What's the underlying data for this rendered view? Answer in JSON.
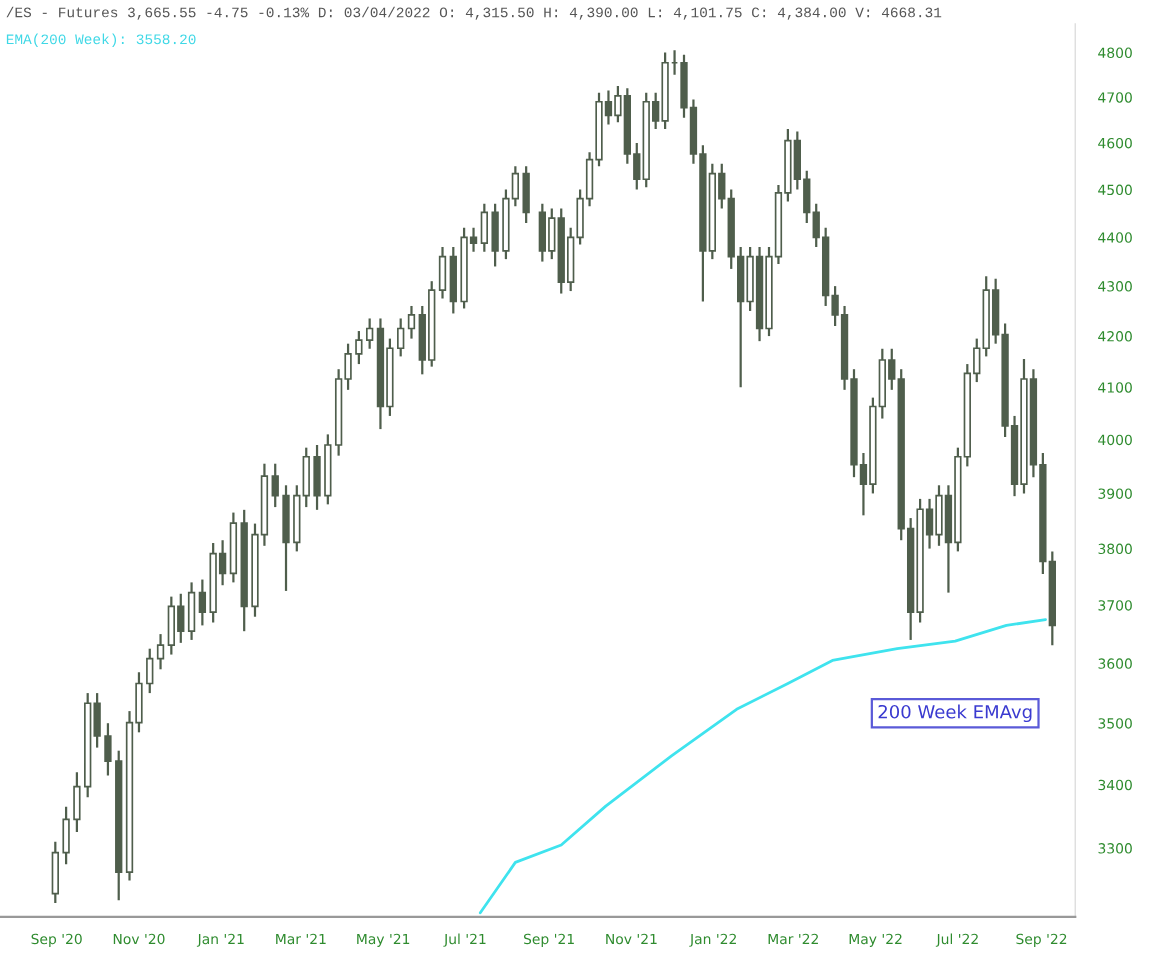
{
  "chart_data": {
    "type": "candlestick",
    "title": "/ES - Futures 3,665.55 -4.75 -0.13% D: 03/04/2022 O: 4,315.50 H: 4,390.00 L: 4,101.75 C: 4,384.00 V: 4668.31",
    "subtitle": "EMA(200 Week): 3558.20",
    "color": "#4f5e4c",
    "x": [
      "2020-08-31",
      "2020-09-08",
      "2020-09-16",
      "2020-09-24",
      "2020-10-01",
      "2020-10-09",
      "2020-10-17",
      "2020-10-25",
      "2020-11-01",
      "2020-11-09",
      "2020-11-17",
      "2020-11-25",
      "2020-12-02",
      "2020-12-10",
      "2020-12-18",
      "2020-12-26",
      "2021-01-02",
      "2021-01-10",
      "2021-01-18",
      "2021-01-26",
      "2021-02-02",
      "2021-02-10",
      "2021-02-18",
      "2021-02-26",
      "2021-03-05",
      "2021-03-13",
      "2021-03-21",
      "2021-03-29",
      "2021-04-05",
      "2021-04-13",
      "2021-04-21",
      "2021-04-29",
      "2021-05-06",
      "2021-05-14",
      "2021-05-22",
      "2021-05-30",
      "2021-06-06",
      "2021-06-14",
      "2021-06-22",
      "2021-06-30",
      "2021-07-07",
      "2021-07-15",
      "2021-07-23",
      "2021-07-31",
      "2021-08-07",
      "2021-08-15",
      "2021-08-27",
      "2021-09-03",
      "2021-09-10",
      "2021-09-17",
      "2021-09-24",
      "2021-10-01",
      "2021-10-08",
      "2021-10-15",
      "2021-10-22",
      "2021-10-29",
      "2021-11-05",
      "2021-11-12",
      "2021-11-19",
      "2021-11-26",
      "2021-12-03",
      "2021-12-10",
      "2021-12-17",
      "2021-12-24",
      "2021-12-31",
      "2022-01-07",
      "2022-01-14",
      "2022-01-21",
      "2022-01-28",
      "2022-02-04",
      "2022-02-11",
      "2022-02-18",
      "2022-02-25",
      "2022-03-04",
      "2022-03-11",
      "2022-03-18",
      "2022-03-25",
      "2022-04-01",
      "2022-04-08",
      "2022-04-15",
      "2022-04-22",
      "2022-04-29",
      "2022-05-06",
      "2022-05-13",
      "2022-05-20",
      "2022-05-27",
      "2022-06-03",
      "2022-06-10",
      "2022-06-17",
      "2022-06-24",
      "2022-07-01",
      "2022-07-08",
      "2022-07-15",
      "2022-07-22",
      "2022-07-29",
      "2022-08-05",
      "2022-08-12",
      "2022-08-19",
      "2022-08-26",
      "2022-09-02",
      "2022-09-09"
    ],
    "ohlc": [
      [
        3230,
        3310,
        3216,
        3293
      ],
      [
        3293,
        3365,
        3275,
        3345
      ],
      [
        3345,
        3420,
        3325,
        3397
      ],
      [
        3397,
        3550,
        3380,
        3533
      ],
      [
        3533,
        3550,
        3460,
        3479
      ],
      [
        3479,
        3500,
        3415,
        3438
      ],
      [
        3438,
        3455,
        3220,
        3263
      ],
      [
        3263,
        3520,
        3250,
        3501
      ],
      [
        3501,
        3585,
        3485,
        3566
      ],
      [
        3566,
        3625,
        3550,
        3608
      ],
      [
        3608,
        3650,
        3590,
        3631
      ],
      [
        3631,
        3715,
        3615,
        3698
      ],
      [
        3698,
        3720,
        3635,
        3655
      ],
      [
        3655,
        3740,
        3640,
        3722
      ],
      [
        3722,
        3745,
        3665,
        3688
      ],
      [
        3688,
        3810,
        3670,
        3791
      ],
      [
        3791,
        3815,
        3735,
        3756
      ],
      [
        3756,
        3865,
        3740,
        3846
      ],
      [
        3846,
        3870,
        3655,
        3698
      ],
      [
        3698,
        3845,
        3680,
        3825
      ],
      [
        3825,
        3955,
        3805,
        3932
      ],
      [
        3932,
        3955,
        3875,
        3896
      ],
      [
        3896,
        3915,
        3725,
        3811
      ],
      [
        3811,
        3915,
        3795,
        3896
      ],
      [
        3896,
        3985,
        3875,
        3968
      ],
      [
        3968,
        3990,
        3870,
        3896
      ],
      [
        3896,
        4010,
        3880,
        3990
      ],
      [
        3990,
        4135,
        3970,
        4116
      ],
      [
        4116,
        4185,
        4095,
        4165
      ],
      [
        4165,
        4210,
        4145,
        4192
      ],
      [
        4192,
        4235,
        4175,
        4215
      ],
      [
        4215,
        4235,
        4020,
        4063
      ],
      [
        4063,
        4195,
        4045,
        4176
      ],
      [
        4176,
        4235,
        4160,
        4215
      ],
      [
        4215,
        4260,
        4195,
        4242
      ],
      [
        4242,
        4260,
        4125,
        4153
      ],
      [
        4153,
        4310,
        4140,
        4292
      ],
      [
        4292,
        4380,
        4275,
        4360
      ],
      [
        4360,
        4380,
        4245,
        4269
      ],
      [
        4269,
        4420,
        4255,
        4400
      ],
      [
        4400,
        4420,
        4370,
        4388
      ],
      [
        4388,
        4470,
        4370,
        4452
      ],
      [
        4452,
        4470,
        4340,
        4372
      ],
      [
        4372,
        4500,
        4355,
        4481
      ],
      [
        4481,
        4550,
        4465,
        4534
      ],
      [
        4534,
        4550,
        4430,
        4452
      ],
      [
        4452,
        4470,
        4350,
        4372
      ],
      [
        4372,
        4460,
        4355,
        4440
      ],
      [
        4440,
        4460,
        4285,
        4308
      ],
      [
        4308,
        4420,
        4290,
        4400
      ],
      [
        4400,
        4500,
        4385,
        4481
      ],
      [
        4481,
        4580,
        4465,
        4564
      ],
      [
        4564,
        4710,
        4550,
        4690
      ],
      [
        4690,
        4715,
        4640,
        4660
      ],
      [
        4660,
        4725,
        4645,
        4703
      ],
      [
        4703,
        4720,
        4555,
        4576
      ],
      [
        4576,
        4600,
        4500,
        4522
      ],
      [
        4522,
        4710,
        4505,
        4690
      ],
      [
        4690,
        4710,
        4630,
        4648
      ],
      [
        4648,
        4800,
        4630,
        4777
      ],
      [
        4777,
        4805,
        4750,
        4777
      ],
      [
        4777,
        4795,
        4655,
        4677
      ],
      [
        4677,
        4695,
        4555,
        4576
      ],
      [
        4576,
        4595,
        4269,
        4372
      ],
      [
        4372,
        4555,
        4355,
        4534
      ],
      [
        4534,
        4555,
        4460,
        4481
      ],
      [
        4481,
        4500,
        4335,
        4360
      ],
      [
        4360,
        4380,
        4100,
        4269
      ],
      [
        4269,
        4380,
        4250,
        4360
      ],
      [
        4360,
        4380,
        4190,
        4215
      ],
      [
        4215,
        4380,
        4200,
        4360
      ],
      [
        4360,
        4510,
        4345,
        4493
      ],
      [
        4493,
        4630,
        4475,
        4605
      ],
      [
        4605,
        4625,
        4500,
        4522
      ],
      [
        4522,
        4540,
        4430,
        4452
      ],
      [
        4452,
        4470,
        4380,
        4400
      ],
      [
        4400,
        4420,
        4260,
        4281
      ],
      [
        4281,
        4300,
        4220,
        4242
      ],
      [
        4242,
        4260,
        4095,
        4116
      ],
      [
        4116,
        4135,
        3930,
        3953
      ],
      [
        3953,
        3975,
        3860,
        3917
      ],
      [
        3917,
        4080,
        3900,
        4063
      ],
      [
        4063,
        4175,
        4040,
        4153
      ],
      [
        4153,
        4175,
        4095,
        4116
      ],
      [
        4116,
        4135,
        3815,
        3836
      ],
      [
        3836,
        3855,
        3640,
        3688
      ],
      [
        3688,
        3890,
        3670,
        3871
      ],
      [
        3871,
        3890,
        3800,
        3825
      ],
      [
        3825,
        3915,
        3805,
        3896
      ],
      [
        3896,
        3915,
        3722,
        3811
      ],
      [
        3811,
        3985,
        3795,
        3968
      ],
      [
        3968,
        4145,
        3950,
        4127
      ],
      [
        4127,
        4195,
        4110,
        4176
      ],
      [
        4176,
        4320,
        4160,
        4292
      ],
      [
        4292,
        4315,
        4185,
        4203
      ],
      [
        4203,
        4225,
        4005,
        4026
      ],
      [
        4026,
        4045,
        3895,
        3917
      ],
      [
        3917,
        4155,
        3900,
        4116
      ],
      [
        4116,
        4135,
        3930,
        3953
      ],
      [
        3953,
        3975,
        3755,
        3777
      ],
      [
        3777,
        3795,
        3631,
        3665
      ]
    ],
    "series": [
      {
        "type": "line",
        "name": "200 Week EMAvg",
        "color": "#3fe3ee",
        "x": [
          "2021-07-12",
          "2021-08-07",
          "2021-09-10",
          "2021-10-13",
          "2021-12-01",
          "2022-01-18",
          "2022-02-25",
          "2022-03-30",
          "2022-05-17",
          "2022-06-29",
          "2022-08-06",
          "2022-09-04"
        ],
        "values": [
          3201,
          3278,
          3305,
          3366,
          3447,
          3523,
          3566,
          3605,
          3625,
          3638,
          3665,
          3675
        ]
      }
    ],
    "log": "y",
    "ylim": [
      3195,
      4865
    ],
    "yticks": [
      3300,
      3400,
      3500,
      3600,
      3700,
      3800,
      3900,
      4000,
      4100,
      4200,
      4300,
      4400,
      4500,
      4600,
      4700,
      4800
    ],
    "xlim": [
      "2020-07-21",
      "2022-09-26"
    ],
    "xticks": [
      {
        "value": "2020-09-01",
        "label": "Sep '20"
      },
      {
        "value": "2020-11-01",
        "label": "Nov '20"
      },
      {
        "value": "2021-01-01",
        "label": "Jan '21"
      },
      {
        "value": "2021-03-01",
        "label": "Mar '21"
      },
      {
        "value": "2021-05-01",
        "label": "May '21"
      },
      {
        "value": "2021-07-01",
        "label": "Jul '21"
      },
      {
        "value": "2021-09-01",
        "label": "Sep '21"
      },
      {
        "value": "2021-11-01",
        "label": "Nov '21"
      },
      {
        "value": "2022-01-01",
        "label": "Jan '22"
      },
      {
        "value": "2022-03-01",
        "label": "Mar '22"
      },
      {
        "value": "2022-05-01",
        "label": "May '22"
      },
      {
        "value": "2022-07-01",
        "label": "Jul '22"
      },
      {
        "value": "2022-09-01",
        "label": "Sep '22"
      }
    ],
    "grid": false,
    "legend": false
  }
}
